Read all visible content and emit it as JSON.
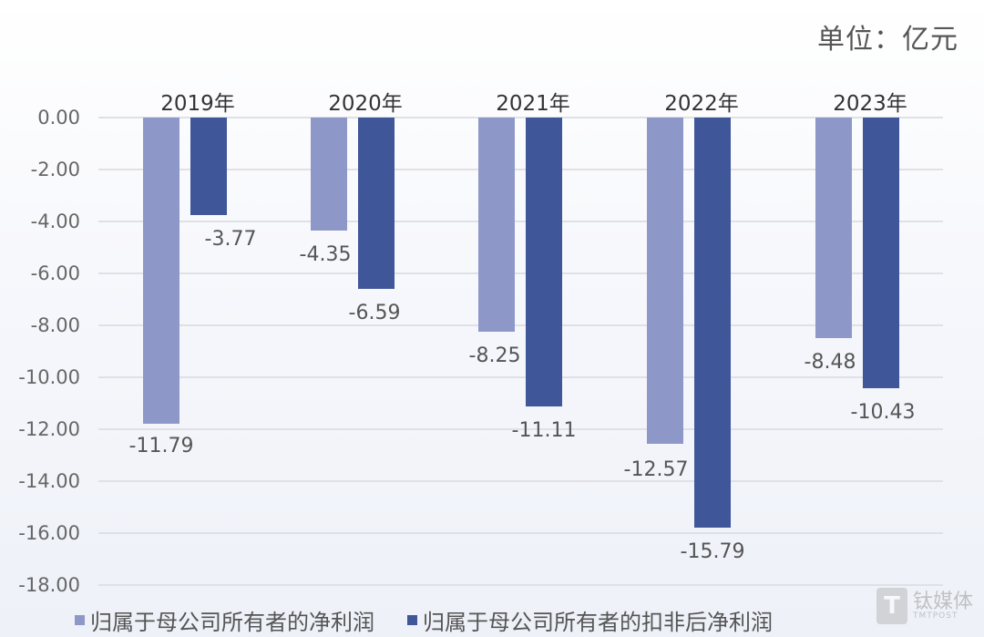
{
  "unit_label": "单位：亿元",
  "legend": [
    {
      "label": "归属于母公司所有者的净利润",
      "color": "#8e98c8"
    },
    {
      "label": "归属于母公司所有者的扣非后净利润",
      "color": "#3f5699"
    }
  ],
  "watermark": {
    "cn": "钛媒体",
    "en": "TMTPOST",
    "logo": "T"
  },
  "y_ticks": [
    "0.00",
    "-2.00",
    "-4.00",
    "-6.00",
    "-8.00",
    "-10.00",
    "-12.00",
    "-14.00",
    "-16.00",
    "-18.00"
  ],
  "categories": [
    "2019年",
    "2020年",
    "2021年",
    "2022年",
    "2023年"
  ],
  "value_labels": {
    "net_profit": [
      "-11.79",
      "-4.35",
      "-8.25",
      "-12.57",
      "-8.48"
    ],
    "deducted_net_profit": [
      "-3.77",
      "-6.59",
      "-11.11",
      "-15.79",
      "-10.43"
    ]
  },
  "chart_data": {
    "type": "bar",
    "title": "",
    "unit": "单位：亿元",
    "categories": [
      "2019年",
      "2020年",
      "2021年",
      "2022年",
      "2023年"
    ],
    "series": [
      {
        "name": "归属于母公司所有者的净利润",
        "color": "#8e98c8",
        "values": [
          -11.79,
          -4.35,
          -8.25,
          -12.57,
          -8.48
        ]
      },
      {
        "name": "归属于母公司所有者的扣非后净利润",
        "color": "#3f5699",
        "values": [
          -3.77,
          -6.59,
          -11.11,
          -15.79,
          -10.43
        ]
      }
    ],
    "xlabel": "",
    "ylabel": "",
    "ylim": [
      -18,
      0
    ],
    "yticks": [
      0,
      -2,
      -4,
      -6,
      -8,
      -10,
      -12,
      -14,
      -16,
      -18
    ],
    "x_axis_position": "top",
    "grid": true,
    "legend_position": "bottom"
  }
}
